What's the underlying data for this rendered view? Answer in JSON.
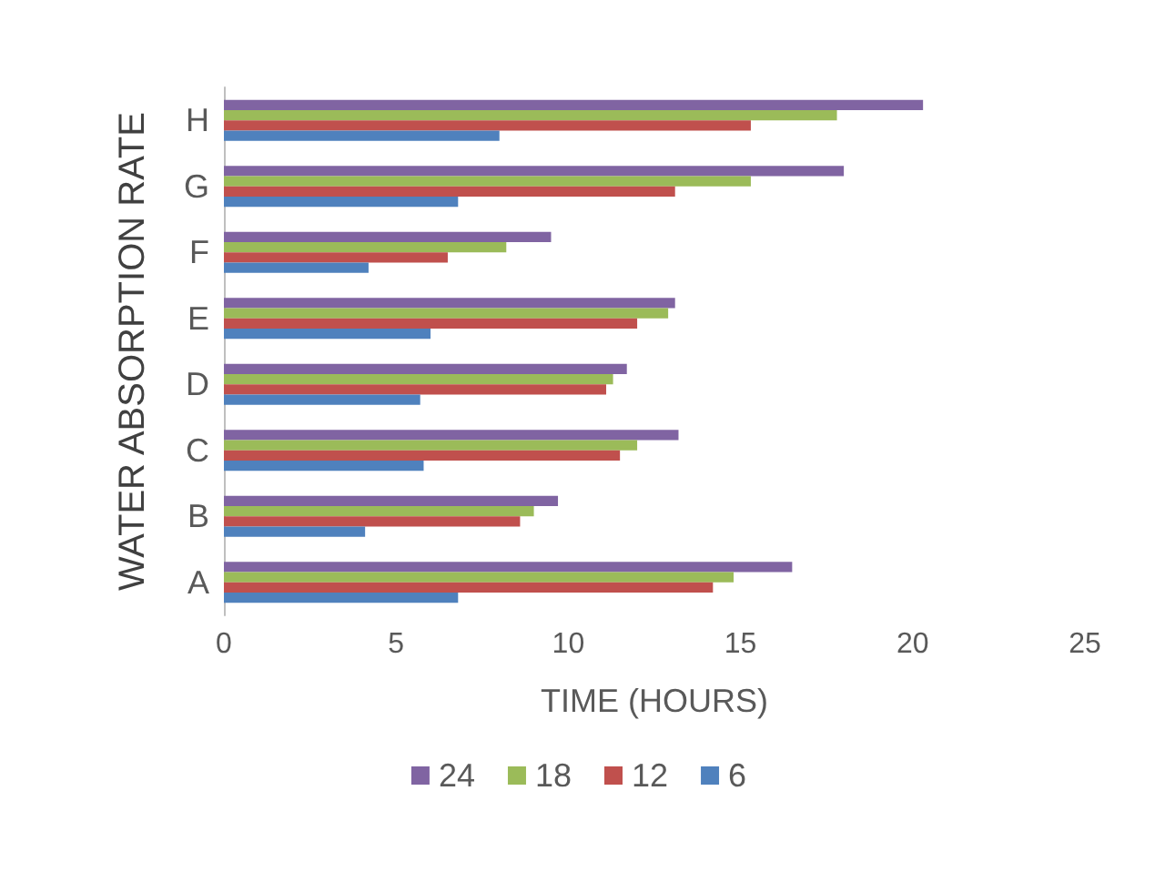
{
  "chart_data": {
    "type": "bar",
    "orientation": "horizontal",
    "xlabel": "TIME (HOURS)",
    "ylabel": "WATER ABSORPTION RATE",
    "categories": [
      "H",
      "G",
      "F",
      "E",
      "D",
      "C",
      "B",
      "A"
    ],
    "xlim": [
      0,
      25
    ],
    "xticks": [
      0,
      5,
      10,
      15,
      20,
      25
    ],
    "grid": false,
    "legend": "bottom",
    "series": [
      {
        "name": "24",
        "color": "#8064a2",
        "values": [
          20.3,
          18.0,
          9.5,
          13.1,
          11.7,
          13.2,
          9.7,
          16.5
        ]
      },
      {
        "name": "18",
        "color": "#9bbb59",
        "values": [
          17.8,
          15.3,
          8.2,
          12.9,
          11.3,
          12.0,
          9.0,
          14.8
        ]
      },
      {
        "name": "12",
        "color": "#c0504d",
        "values": [
          15.3,
          13.1,
          6.5,
          12.0,
          11.1,
          11.5,
          8.6,
          14.2
        ]
      },
      {
        "name": "6",
        "color": "#4f81bd",
        "values": [
          8.0,
          6.8,
          4.2,
          6.0,
          5.7,
          5.8,
          4.1,
          6.8
        ]
      }
    ]
  }
}
